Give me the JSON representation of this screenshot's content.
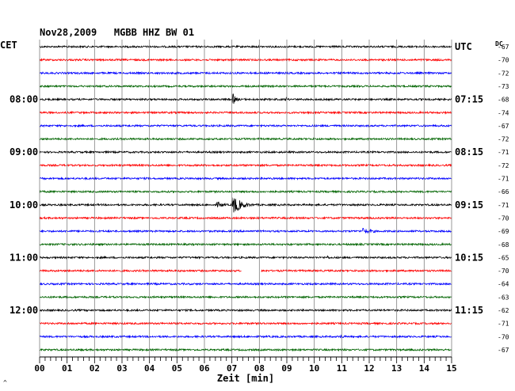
{
  "chart_data": {
    "type": "line",
    "title": "Nov28,2009   MGBB HHZ BW 01",
    "left_axis_label": "CET",
    "right_axis_label": "UTC",
    "dc_label": "DC",
    "xlabel": "Zeit [min]",
    "x_ticks": [
      "00",
      "01",
      "02",
      "03",
      "04",
      "05",
      "06",
      "07",
      "08",
      "09",
      "10",
      "11",
      "12",
      "13",
      "14",
      "15"
    ],
    "xlim": [
      0,
      15
    ],
    "grid": true,
    "footer_mark": "^",
    "colors": {
      "trace_cycle": [
        "#000000",
        "#ff0000",
        "#0000ff",
        "#006400"
      ],
      "grid": "#808080"
    },
    "left_time_labels": [
      {
        "trace": 4,
        "label": "08:00"
      },
      {
        "trace": 8,
        "label": "09:00"
      },
      {
        "trace": 12,
        "label": "10:00"
      },
      {
        "trace": 16,
        "label": "11:00"
      },
      {
        "trace": 20,
        "label": "12:00"
      }
    ],
    "right_time_labels": [
      {
        "trace": 0,
        "label": "UTC"
      },
      {
        "trace": 4,
        "label": "07:15"
      },
      {
        "trace": 8,
        "label": "08:15"
      },
      {
        "trace": 12,
        "label": "09:15"
      },
      {
        "trace": 16,
        "label": "10:15"
      },
      {
        "trace": 20,
        "label": "11:15"
      }
    ],
    "dc_offsets": [
      "-67",
      "-70",
      "-72",
      "-73",
      "-68",
      "-74",
      "-67",
      "-72",
      "-71",
      "-72",
      "-71",
      "-66",
      "-71",
      "-70",
      "-69",
      "-68",
      "-65",
      "-70",
      "-64",
      "-63",
      "-62",
      "-71",
      "-70",
      "-67"
    ],
    "events": [
      {
        "trace": 4,
        "minute": 7.05,
        "amplitude": 7,
        "duration": 0.5
      },
      {
        "trace": 4,
        "minute": 9.0,
        "amplitude": 3,
        "duration": 0.3
      },
      {
        "trace": 12,
        "minute": 7.05,
        "amplitude": 12,
        "duration": 1.3
      },
      {
        "trace": 12,
        "minute": 6.5,
        "amplitude": 4,
        "duration": 1.0
      },
      {
        "trace": 14,
        "minute": 11.8,
        "amplitude": 4,
        "duration": 1.6
      },
      {
        "trace": 16,
        "minute": 10.5,
        "amplitude": 2.5,
        "duration": 0.3
      },
      {
        "trace": 22,
        "minute": 11.0,
        "amplitude": 3,
        "duration": 0.4
      }
    ],
    "gaps": [
      {
        "trace": 17,
        "from_minute": 7.35,
        "to_minute": 8.05
      }
    ]
  }
}
